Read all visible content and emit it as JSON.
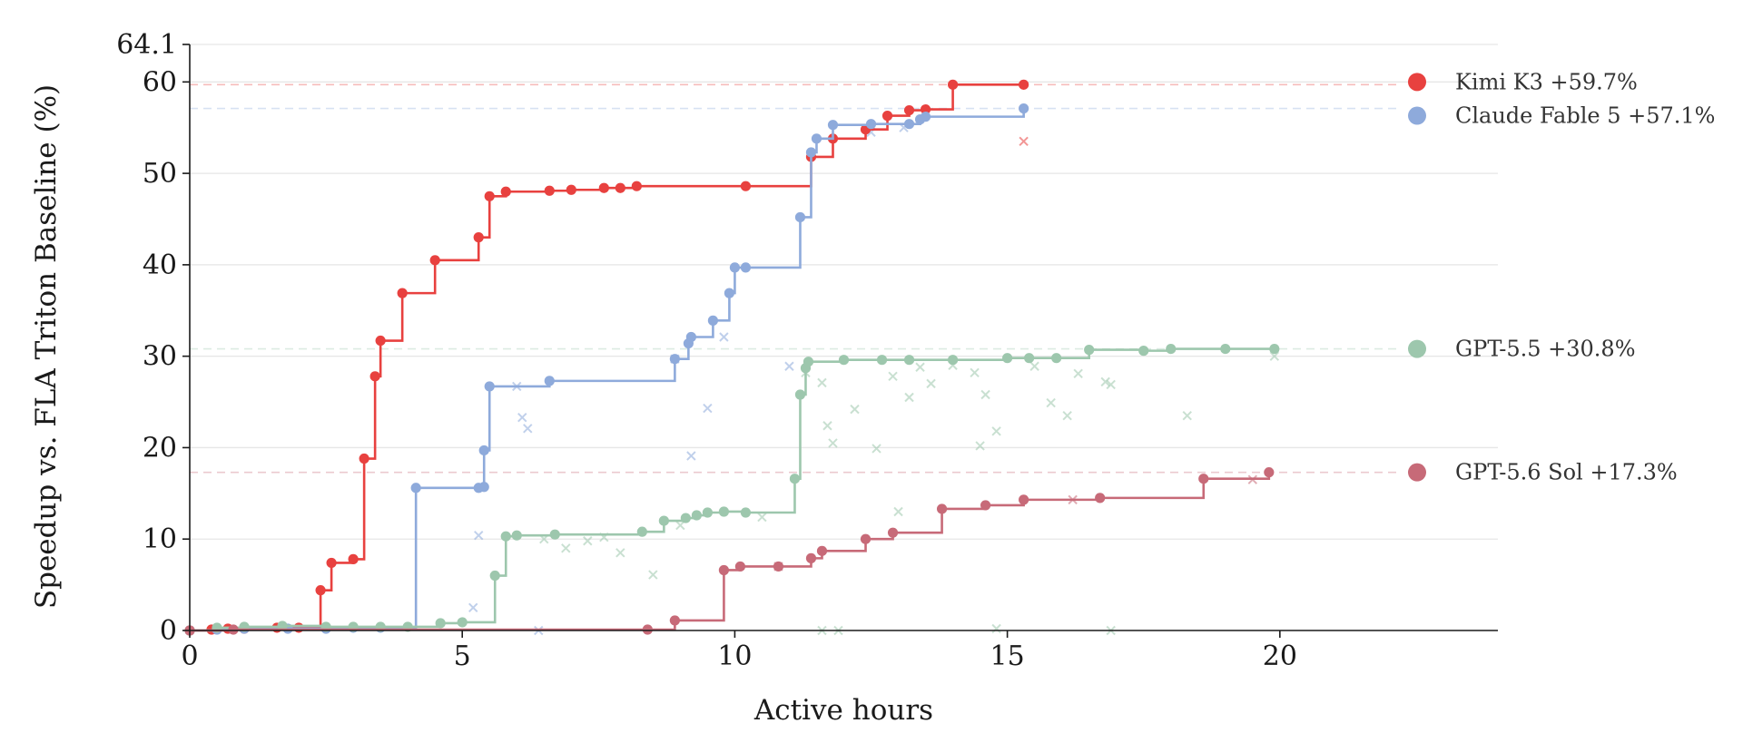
{
  "chart_data": {
    "type": "line",
    "xlabel": "Active hours",
    "ylabel": "Speedup vs. FLA Triton Baseline (%)",
    "xlim": [
      0,
      24
    ],
    "ylim": [
      0,
      64.1
    ],
    "x_ticks": [
      0,
      5,
      10,
      15,
      20
    ],
    "x_tick_labels": [
      "0",
      "5",
      "10",
      "15",
      "20"
    ],
    "y_ticks": [
      0,
      10,
      20,
      30,
      40,
      50,
      60,
      64.1
    ],
    "y_tick_labels": [
      "0",
      "10",
      "20",
      "30",
      "40",
      "50",
      "60",
      "64.1"
    ],
    "grid": "horizontal",
    "step_style": "post",
    "legend_placement": "right",
    "series": [
      {
        "name": "Kimi K3",
        "legend_label": "Kimi K3 +59.7%",
        "final": 59.7,
        "color": "#e8413f",
        "points": [
          [
            0,
            0
          ],
          [
            0.4,
            0.1
          ],
          [
            0.7,
            0.2
          ],
          [
            1.0,
            0.2
          ],
          [
            1.6,
            0.3
          ],
          [
            2.0,
            0.3
          ],
          [
            2.4,
            4.4
          ],
          [
            2.6,
            7.4
          ],
          [
            3.0,
            7.8
          ],
          [
            3.2,
            18.8
          ],
          [
            3.4,
            27.8
          ],
          [
            3.5,
            31.7
          ],
          [
            3.9,
            36.9
          ],
          [
            4.5,
            40.5
          ],
          [
            5.3,
            43.0
          ],
          [
            5.5,
            47.5
          ],
          [
            5.8,
            48.0
          ],
          [
            6.6,
            48.1
          ],
          [
            7.0,
            48.2
          ],
          [
            7.6,
            48.4
          ],
          [
            7.9,
            48.4
          ],
          [
            8.2,
            48.6
          ],
          [
            10.2,
            48.6
          ],
          [
            11.4,
            51.8
          ],
          [
            11.8,
            53.8
          ],
          [
            12.4,
            54.8
          ],
          [
            12.8,
            56.3
          ],
          [
            13.2,
            56.9
          ],
          [
            13.5,
            57.0
          ],
          [
            14.0,
            59.7
          ],
          [
            15.3,
            59.7
          ]
        ],
        "scatter": [
          [
            15.3,
            53.5
          ]
        ]
      },
      {
        "name": "Claude Fable 5",
        "legend_label": "Claude Fable 5 +57.1%",
        "final": 57.1,
        "color": "#8eaadb",
        "points": [
          [
            0,
            0
          ],
          [
            0.5,
            0.1
          ],
          [
            1.0,
            0.2
          ],
          [
            1.8,
            0.2
          ],
          [
            2.5,
            0.2
          ],
          [
            3.0,
            0.3
          ],
          [
            3.5,
            0.3
          ],
          [
            4.15,
            15.6
          ],
          [
            5.3,
            15.6
          ],
          [
            5.4,
            15.7
          ],
          [
            5.4,
            19.7
          ],
          [
            5.5,
            26.7
          ],
          [
            6.6,
            27.3
          ],
          [
            8.9,
            29.7
          ],
          [
            9.15,
            31.4
          ],
          [
            9.2,
            32.1
          ],
          [
            9.6,
            33.9
          ],
          [
            9.9,
            36.9
          ],
          [
            10.0,
            39.7
          ],
          [
            10.2,
            39.7
          ],
          [
            11.2,
            45.2
          ],
          [
            11.4,
            52.3
          ],
          [
            11.5,
            53.8
          ],
          [
            11.8,
            55.3
          ],
          [
            12.5,
            55.4
          ],
          [
            13.2,
            55.4
          ],
          [
            13.4,
            55.9
          ],
          [
            13.5,
            56.2
          ],
          [
            15.3,
            57.1
          ]
        ],
        "scatter": [
          [
            5.2,
            2.5
          ],
          [
            5.3,
            10.4
          ],
          [
            6.0,
            26.7
          ],
          [
            6.1,
            23.3
          ],
          [
            6.2,
            22.1
          ],
          [
            8.9,
            29.7
          ],
          [
            9.2,
            19.1
          ],
          [
            9.5,
            24.3
          ],
          [
            9.8,
            32.1
          ],
          [
            11.0,
            28.9
          ],
          [
            12.5,
            54.5
          ],
          [
            13.1,
            55.0
          ],
          [
            6.4,
            0.0
          ]
        ]
      },
      {
        "name": "GPT-5.5",
        "legend_label": "GPT-5.5 +30.8%",
        "final": 30.8,
        "color": "#9dc7ad",
        "points": [
          [
            0,
            0
          ],
          [
            0.5,
            0.3
          ],
          [
            1.0,
            0.4
          ],
          [
            1.7,
            0.5
          ],
          [
            2.5,
            0.4
          ],
          [
            3.0,
            0.4
          ],
          [
            3.5,
            0.4
          ],
          [
            4.0,
            0.4
          ],
          [
            4.6,
            0.8
          ],
          [
            5.0,
            0.9
          ],
          [
            5.6,
            6.0
          ],
          [
            5.8,
            10.3
          ],
          [
            6.0,
            10.4
          ],
          [
            6.7,
            10.5
          ],
          [
            8.3,
            10.8
          ],
          [
            8.7,
            12.0
          ],
          [
            9.1,
            12.3
          ],
          [
            9.3,
            12.6
          ],
          [
            9.5,
            12.9
          ],
          [
            9.8,
            13.0
          ],
          [
            10.2,
            12.9
          ],
          [
            11.1,
            16.6
          ],
          [
            11.2,
            25.8
          ],
          [
            11.3,
            28.7
          ],
          [
            11.35,
            29.4
          ],
          [
            12.0,
            29.6
          ],
          [
            12.7,
            29.6
          ],
          [
            13.2,
            29.6
          ],
          [
            14.0,
            29.6
          ],
          [
            15.0,
            29.8
          ],
          [
            15.4,
            29.8
          ],
          [
            15.9,
            29.8
          ],
          [
            16.5,
            30.7
          ],
          [
            17.5,
            30.6
          ],
          [
            18.0,
            30.8
          ],
          [
            19.0,
            30.8
          ],
          [
            19.9,
            30.8
          ]
        ],
        "scatter": [
          [
            6.5,
            10.0
          ],
          [
            6.9,
            9.0
          ],
          [
            7.3,
            9.8
          ],
          [
            7.6,
            10.2
          ],
          [
            7.9,
            8.5
          ],
          [
            8.5,
            6.1
          ],
          [
            9.0,
            11.5
          ],
          [
            10.5,
            12.4
          ],
          [
            11.3,
            28.2
          ],
          [
            11.6,
            27.1
          ],
          [
            11.7,
            22.4
          ],
          [
            11.8,
            20.5
          ],
          [
            12.2,
            24.2
          ],
          [
            12.6,
            19.9
          ],
          [
            12.9,
            27.8
          ],
          [
            13.2,
            25.5
          ],
          [
            13.4,
            28.8
          ],
          [
            13.6,
            27.0
          ],
          [
            14.0,
            29.0
          ],
          [
            14.4,
            28.2
          ],
          [
            14.6,
            25.8
          ],
          [
            14.8,
            21.8
          ],
          [
            15.5,
            28.9
          ],
          [
            15.8,
            24.9
          ],
          [
            16.1,
            23.5
          ],
          [
            16.3,
            28.1
          ],
          [
            16.8,
            27.2
          ],
          [
            16.9,
            26.9
          ],
          [
            18.3,
            23.5
          ],
          [
            19.9,
            30.0
          ],
          [
            11.6,
            0.0
          ],
          [
            11.9,
            0.0
          ],
          [
            14.8,
            0.2
          ],
          [
            16.9,
            0.0
          ],
          [
            13.0,
            13.0
          ],
          [
            14.5,
            20.2
          ]
        ]
      },
      {
        "name": "GPT-5.6 Sol",
        "legend_label": "GPT-5.6 Sol +17.3%",
        "final": 17.3,
        "color": "#c76a78",
        "points": [
          [
            0,
            0
          ],
          [
            0.8,
            0.1
          ],
          [
            8.4,
            0.1
          ],
          [
            8.9,
            1.1
          ],
          [
            9.8,
            6.6
          ],
          [
            10.1,
            7.0
          ],
          [
            10.8,
            7.0
          ],
          [
            11.4,
            7.9
          ],
          [
            11.6,
            8.7
          ],
          [
            12.4,
            10.0
          ],
          [
            12.9,
            10.7
          ],
          [
            13.8,
            13.3
          ],
          [
            14.6,
            13.7
          ],
          [
            15.3,
            14.3
          ],
          [
            16.7,
            14.5
          ],
          [
            18.6,
            16.6
          ],
          [
            19.8,
            17.3
          ]
        ],
        "scatter": [
          [
            16.2,
            14.3
          ],
          [
            19.5,
            16.5
          ],
          [
            10.8,
            7.0
          ]
        ]
      }
    ]
  }
}
